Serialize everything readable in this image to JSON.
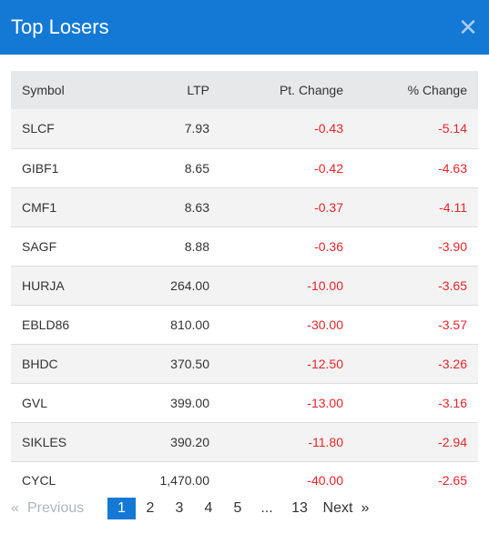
{
  "header": {
    "title": "Top Losers",
    "close_icon": "close-icon"
  },
  "table": {
    "columns": [
      "Symbol",
      "LTP",
      "Pt. Change",
      "% Change"
    ],
    "rows": [
      {
        "symbol": "SLCF",
        "ltp": "7.93",
        "pt_change": "-0.43",
        "pct_change": "-5.14"
      },
      {
        "symbol": "GIBF1",
        "ltp": "8.65",
        "pt_change": "-0.42",
        "pct_change": "-4.63"
      },
      {
        "symbol": "CMF1",
        "ltp": "8.63",
        "pt_change": "-0.37",
        "pct_change": "-4.11"
      },
      {
        "symbol": "SAGF",
        "ltp": "8.88",
        "pt_change": "-0.36",
        "pct_change": "-3.90"
      },
      {
        "symbol": "HURJA",
        "ltp": "264.00",
        "pt_change": "-10.00",
        "pct_change": "-3.65"
      },
      {
        "symbol": "EBLD86",
        "ltp": "810.00",
        "pt_change": "-30.00",
        "pct_change": "-3.57"
      },
      {
        "symbol": "BHDC",
        "ltp": "370.50",
        "pt_change": "-12.50",
        "pct_change": "-3.26"
      },
      {
        "symbol": "GVL",
        "ltp": "399.00",
        "pt_change": "-13.00",
        "pct_change": "-3.16"
      },
      {
        "symbol": "SIKLES",
        "ltp": "390.20",
        "pt_change": "-11.80",
        "pct_change": "-2.94"
      },
      {
        "symbol": "CYCL",
        "ltp": "1,470.00",
        "pt_change": "-40.00",
        "pct_change": "-2.65"
      }
    ]
  },
  "pagination": {
    "first_arrow": "«",
    "previous": "Previous",
    "pages": [
      "1",
      "2",
      "3",
      "4",
      "5"
    ],
    "ellipsis": "...",
    "last_page": "13",
    "next": "Next",
    "last_arrow": "»",
    "active_page": "1"
  },
  "colors": {
    "header": "#1479d4",
    "negative": "#e5262d",
    "active_page": "#1479d4"
  }
}
